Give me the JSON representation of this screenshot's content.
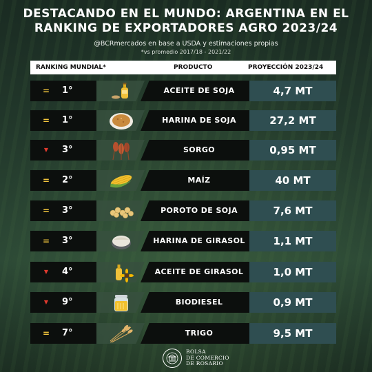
{
  "title_line1": "DESTACANDO EN EL MUNDO: ARGENTINA EN EL",
  "title_line2": "RANKING DE EXPORTADORES AGRO 2023/24",
  "subtitle": "@BCRmercados en base a USDA y estimaciones propias",
  "note": "*vs promedio 2017/18 - 2021/22",
  "header": {
    "rank": "RANKING MUNDIAL*",
    "product": "PRODUCTO",
    "projection": "PROYECCIÓN 2023/24"
  },
  "rows": [
    {
      "indicator": "=",
      "trend": "equal",
      "rank": "1°",
      "product": "ACEITE DE SOJA",
      "value": "4,7 MT",
      "icon": "oil-bottle-icon"
    },
    {
      "indicator": "=",
      "trend": "equal",
      "rank": "1°",
      "product": "HARINA DE SOJA",
      "value": "27,2 MT",
      "icon": "soy-meal-bowl-icon"
    },
    {
      "indicator": "▼",
      "trend": "down",
      "rank": "3°",
      "product": "SORGO",
      "value": "0,95 MT",
      "icon": "sorghum-icon"
    },
    {
      "indicator": "=",
      "trend": "equal",
      "rank": "2°",
      "product": "MAÍZ",
      "value": "40 MT",
      "icon": "corn-icon"
    },
    {
      "indicator": "=",
      "trend": "equal",
      "rank": "3°",
      "product": "POROTO DE SOJA",
      "value": "7,6 MT",
      "icon": "soybeans-icon"
    },
    {
      "indicator": "=",
      "trend": "equal",
      "rank": "3°",
      "product": "HARINA DE GIRASOL",
      "value": "1,1 MT",
      "icon": "sunflower-meal-bowl-icon"
    },
    {
      "indicator": "▼",
      "trend": "down",
      "rank": "4°",
      "product": "ACEITE DE GIRASOL",
      "value": "1,0 MT",
      "icon": "sunflower-oil-icon"
    },
    {
      "indicator": "▼",
      "trend": "down",
      "rank": "9°",
      "product": "BIODIESEL",
      "value": "0,9 MT",
      "icon": "biodiesel-jar-icon"
    },
    {
      "indicator": "=",
      "trend": "equal",
      "rank": "7°",
      "product": "TRIGO",
      "value": "9,5 MT",
      "icon": "wheat-icon"
    }
  ],
  "footer": {
    "line1": "BOLSA",
    "line2": "DE COMERCIO",
    "line3": "DE ROSARIO"
  },
  "colors": {
    "equal": "#f2c53d",
    "down": "#e03a2e",
    "value_bg": "#2f4e51"
  }
}
